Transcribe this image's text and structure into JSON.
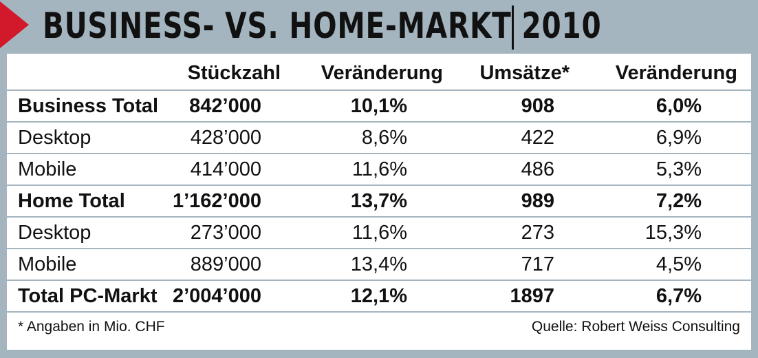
{
  "title": "BUSINESS- VS. HOME-MARKT 2010",
  "chart_data": {
    "type": "table",
    "columns": [
      "",
      "Stückzahl",
      "Veränderung",
      "Umsätze*",
      "Veränderung"
    ],
    "rows": [
      {
        "label": "Business Total",
        "bold": true,
        "values": [
          "842’000",
          "10,1%",
          "908",
          "6,0%"
        ]
      },
      {
        "label": "Desktop",
        "bold": false,
        "values": [
          "428’000",
          "8,6%",
          "422",
          "6,9%"
        ]
      },
      {
        "label": "Mobile",
        "bold": false,
        "values": [
          "414’000",
          "11,6%",
          "486",
          "5,3%"
        ]
      },
      {
        "label": "Home Total",
        "bold": true,
        "values": [
          "1’162’000",
          "13,7%",
          "989",
          "7,2%"
        ]
      },
      {
        "label": "Desktop",
        "bold": false,
        "values": [
          "273’000",
          "11,6%",
          "273",
          "15,3%"
        ]
      },
      {
        "label": "Mobile",
        "bold": false,
        "values": [
          "889’000",
          "13,4%",
          "717",
          "4,5%"
        ]
      },
      {
        "label": "Total PC-Markt",
        "bold": true,
        "values": [
          "2’004’000",
          "12,1%",
          "1897",
          "6,7%"
        ]
      }
    ],
    "footnote": "* Angaben in Mio. CHF",
    "source": "Quelle: Robert Weiss Consulting"
  },
  "colors": {
    "frame": "#a4b5c0",
    "accent": "#d2192b",
    "text": "#111111",
    "panel": "#ffffff"
  }
}
